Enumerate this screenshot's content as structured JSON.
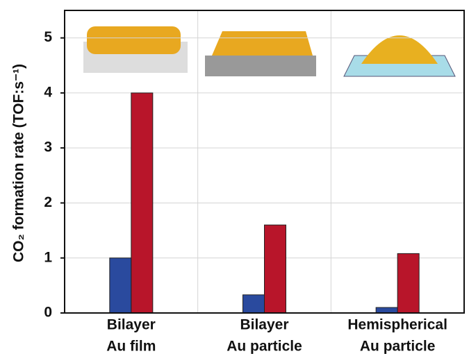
{
  "chart_data": {
    "type": "bar",
    "y_label": "CO₂ formation rate (TOF:s⁻¹)",
    "categories": [
      [
        "Bilayer",
        "Au film"
      ],
      [
        "Bilayer",
        "Au particle"
      ],
      [
        "Hemispherical",
        "Au particle"
      ]
    ],
    "series": [
      {
        "color": "#2a4a9e",
        "values": [
          1.0,
          0.33,
          0.1
        ]
      },
      {
        "color": "#b8152a",
        "values": [
          4.0,
          1.6,
          1.08
        ]
      }
    ],
    "ylim": [
      0,
      5.5
    ],
    "yticks": [
      0,
      1,
      2,
      3,
      4,
      5
    ],
    "grid": true
  }
}
